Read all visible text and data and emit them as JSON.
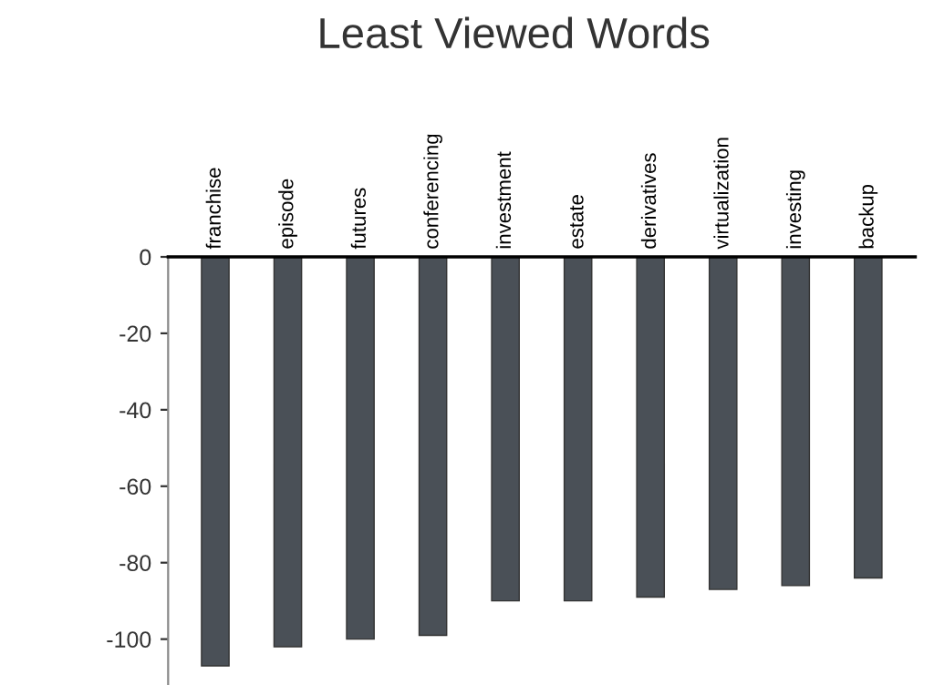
{
  "chart_data": {
    "type": "bar",
    "title": "Least Viewed Words",
    "categories": [
      "franchise",
      "episode",
      "futures",
      "conferencing",
      "investment",
      "estate",
      "derivatives",
      "virtualization",
      "investing",
      "backup"
    ],
    "values": [
      -107,
      -102,
      -100,
      -99,
      -90,
      -90,
      -89,
      -87,
      -86,
      -84
    ],
    "color": "#4a5057",
    "ylim": [
      -112,
      0
    ],
    "yticks": [
      0,
      -20,
      -40,
      -60,
      -80,
      -100
    ],
    "grid": false
  }
}
